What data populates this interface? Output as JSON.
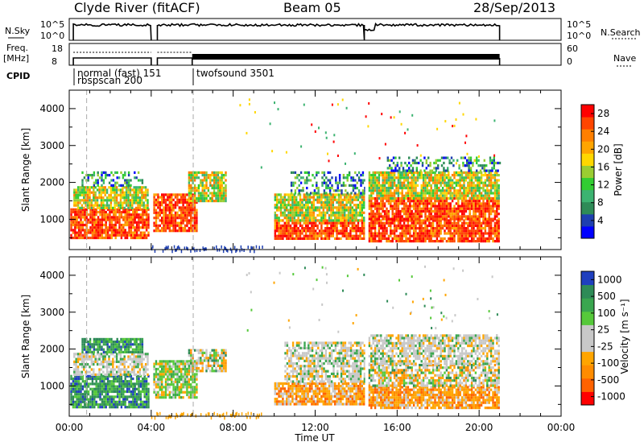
{
  "header": {
    "station": "Clyde River (fitACF)",
    "beam": "Beam 05",
    "date": "28/Sep/2013"
  },
  "nsky_panel": {
    "left_label": "N.Sky",
    "left_ticks": [
      "10^5",
      "10^0"
    ],
    "right_ticks": [
      "10^5",
      "10^0"
    ],
    "right_label": "N.Search"
  },
  "freq_panel": {
    "left_label_line1": "Freq.",
    "left_label_line2": "[MHz]",
    "left_ticks": [
      "18",
      "8"
    ],
    "right_ticks": [
      "60",
      "0"
    ],
    "right_label": "Nave"
  },
  "cpid": {
    "label": "CPID",
    "entries": [
      {
        "text": "normal (fast)  151",
        "start_hour": 0.1
      },
      {
        "text": "rbspscan 200",
        "start_hour": 0.1
      },
      {
        "text": "twofsound 3501",
        "start_hour": 6.05
      }
    ]
  },
  "colors": {
    "power_scale": [
      "#0000ff",
      "#1e3fb0",
      "#2e8b57",
      "#3cb371",
      "#32cd32",
      "#9acd32",
      "#ffd700",
      "#ffa500",
      "#ff7f00",
      "#ff4500",
      "#ff0000"
    ],
    "velocity_scale": [
      "#1f3fbf",
      "#2e8b57",
      "#3aa64f",
      "#56c93a",
      "#c8c8c8",
      "#c8c8c8",
      "#ffa500",
      "#ff8c00",
      "#ff6200",
      "#ff0000"
    ]
  },
  "chart_data": [
    {
      "type": "heatmap",
      "title": "",
      "xlabel": "",
      "ylabel": "Slant Range [km]",
      "xlim": [
        0,
        24
      ],
      "ylim": [
        180,
        4500
      ],
      "x_ticks": [
        "00:00",
        "04:00",
        "08:00",
        "12:00",
        "16:00",
        "20:00",
        "00:00"
      ],
      "y_ticks": [
        1000,
        2000,
        3000,
        4000
      ],
      "colorbar": {
        "label": "Power [dB]",
        "ticks": [
          4,
          8,
          12,
          16,
          20,
          24,
          28
        ],
        "range": [
          0,
          30
        ]
      },
      "echo_regions": [
        {
          "t0": 0.05,
          "t1": 3.9,
          "r0": 500,
          "r1": 1300,
          "level": "high"
        },
        {
          "t0": 0.2,
          "t1": 3.8,
          "r0": 1300,
          "r1": 1900,
          "level": "mid"
        },
        {
          "t0": 0.6,
          "t1": 3.6,
          "r0": 1900,
          "r1": 2300,
          "level": "low"
        },
        {
          "t0": 4.1,
          "t1": 6.2,
          "r0": 700,
          "r1": 1700,
          "level": "high"
        },
        {
          "t0": 5.8,
          "t1": 7.6,
          "r0": 1500,
          "r1": 2300,
          "level": "mid"
        },
        {
          "t0": 10.0,
          "t1": 14.4,
          "r0": 500,
          "r1": 1000,
          "level": "high"
        },
        {
          "t0": 10.0,
          "t1": 14.4,
          "r0": 1000,
          "r1": 1700,
          "level": "mid"
        },
        {
          "t0": 10.8,
          "t1": 14.4,
          "r0": 1700,
          "r1": 2300,
          "level": "low"
        },
        {
          "t0": 14.6,
          "t1": 21.0,
          "r0": 400,
          "r1": 1000,
          "level": "high"
        },
        {
          "t0": 14.6,
          "t1": 21.0,
          "r0": 1000,
          "r1": 1600,
          "level": "high"
        },
        {
          "t0": 14.6,
          "t1": 21.0,
          "r0": 1600,
          "r1": 2300,
          "level": "mid"
        },
        {
          "t0": 15.5,
          "t1": 21.0,
          "r0": 2300,
          "r1": 2700,
          "level": "low"
        }
      ]
    },
    {
      "type": "heatmap",
      "title": "",
      "xlabel": "Time UT",
      "ylabel": "Slant Range [km]",
      "xlim": [
        0,
        24
      ],
      "ylim": [
        180,
        4500
      ],
      "x_ticks": [
        "00:00",
        "04:00",
        "08:00",
        "12:00",
        "16:00",
        "20:00",
        "00:00"
      ],
      "y_ticks": [
        1000,
        2000,
        3000,
        4000
      ],
      "colorbar": {
        "label": "Velocity [m s⁻¹]",
        "ticks": [
          "1000",
          "500",
          "100",
          "25",
          "-25",
          "-100",
          "-500",
          "-1000"
        ]
      },
      "echo_regions": [
        {
          "t0": 0.05,
          "t1": 3.9,
          "r0": 400,
          "r1": 1300,
          "level": "toward"
        },
        {
          "t0": 0.2,
          "t1": 3.8,
          "r0": 1300,
          "r1": 1900,
          "level": "zero"
        },
        {
          "t0": 0.6,
          "t1": 3.6,
          "r0": 1900,
          "r1": 2300,
          "level": "toward"
        },
        {
          "t0": 4.1,
          "t1": 6.2,
          "r0": 700,
          "r1": 1700,
          "level": "positive"
        },
        {
          "t0": 5.8,
          "t1": 7.6,
          "r0": 1400,
          "r1": 2000,
          "level": "mixed"
        },
        {
          "t0": 10.0,
          "t1": 14.4,
          "r0": 500,
          "r1": 1100,
          "level": "away"
        },
        {
          "t0": 10.5,
          "t1": 14.4,
          "r0": 1100,
          "r1": 2200,
          "level": "zero"
        },
        {
          "t0": 14.6,
          "t1": 21.0,
          "r0": 400,
          "r1": 1000,
          "level": "away"
        },
        {
          "t0": 14.6,
          "t1": 21.0,
          "r0": 1000,
          "r1": 1600,
          "level": "mixed"
        },
        {
          "t0": 14.6,
          "t1": 21.0,
          "r0": 1600,
          "r1": 2400,
          "level": "zero"
        }
      ]
    }
  ]
}
